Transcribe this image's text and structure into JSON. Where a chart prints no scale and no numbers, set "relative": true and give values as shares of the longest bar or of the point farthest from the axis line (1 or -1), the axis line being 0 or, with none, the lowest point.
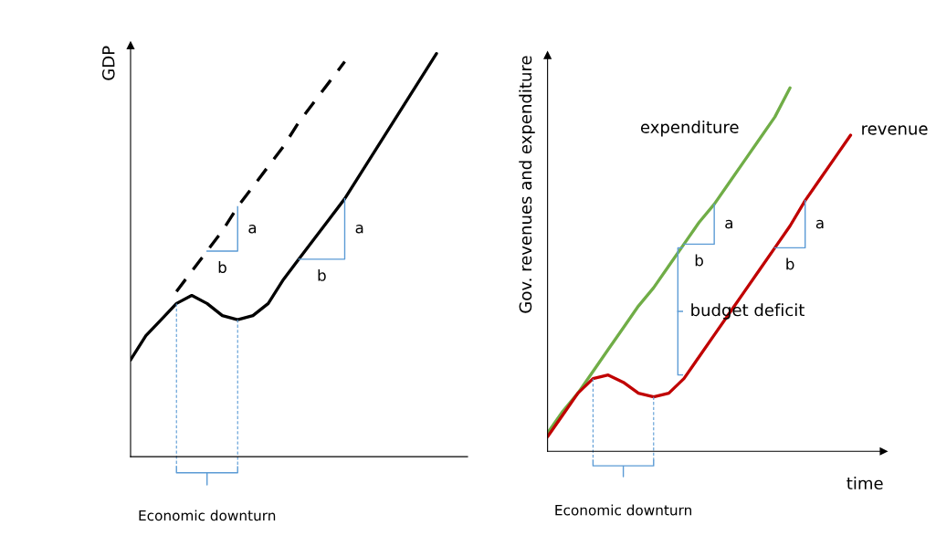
{
  "chart_data": [
    {
      "type": "line",
      "relative": true,
      "ylabel": "GDP",
      "legend": false,
      "marker": "none",
      "categories": [
        null,
        null,
        null,
        null,
        null,
        null,
        null,
        null,
        null,
        null,
        null,
        null,
        null,
        null,
        null,
        null,
        null,
        null,
        null,
        null,
        null
      ],
      "series": [
        {
          "color": "#000000",
          "line_style": "solid",
          "values": [
            0.24,
            0.3,
            0.34,
            0.38,
            0.4,
            0.38,
            0.35,
            0.34,
            0.35,
            0.38,
            0.44,
            0.49,
            0.54,
            0.59,
            0.64,
            0.7,
            0.76,
            0.82,
            0.88,
            0.94,
            1.0
          ]
        },
        {
          "color": "#000000",
          "line_style": "dashed",
          "values": [
            null,
            null,
            null,
            0.41,
            0.46,
            0.51,
            0.56,
            0.62,
            0.67,
            0.72,
            0.77,
            0.83,
            0.88,
            0.93,
            0.98,
            null,
            null,
            null,
            null,
            null,
            null
          ]
        }
      ],
      "annotations": [
        "a",
        "b",
        "a",
        "b",
        "Economic downturn"
      ]
    },
    {
      "type": "line",
      "relative": true,
      "ylabel": "Gov. revenues and expenditure",
      "xlabel": "time",
      "legend": false,
      "marker": "none",
      "categories": [
        null,
        null,
        null,
        null,
        null,
        null,
        null,
        null,
        null,
        null,
        null,
        null,
        null,
        null,
        null,
        null,
        null,
        null,
        null,
        null,
        null
      ],
      "series": [
        {
          "name": "expenditure",
          "color": "#70ad47",
          "line_style": "solid",
          "values": [
            0.05,
            0.11,
            0.16,
            0.22,
            0.28,
            0.34,
            0.4,
            0.45,
            0.51,
            0.57,
            0.63,
            0.68,
            0.74,
            0.8,
            0.86,
            0.92,
            1.0,
            null,
            null,
            null,
            null
          ]
        },
        {
          "name": "revenue",
          "color": "#c00000",
          "line_style": "solid",
          "values": [
            0.04,
            0.1,
            0.16,
            0.2,
            0.21,
            0.19,
            0.16,
            0.15,
            0.16,
            0.2,
            0.26,
            0.32,
            0.38,
            0.44,
            0.5,
            0.56,
            0.62,
            0.69,
            0.75,
            0.81,
            0.87
          ]
        }
      ],
      "annotations": [
        "a",
        "b",
        "a",
        "b",
        "budget deficit",
        "Economic downturn"
      ]
    }
  ]
}
